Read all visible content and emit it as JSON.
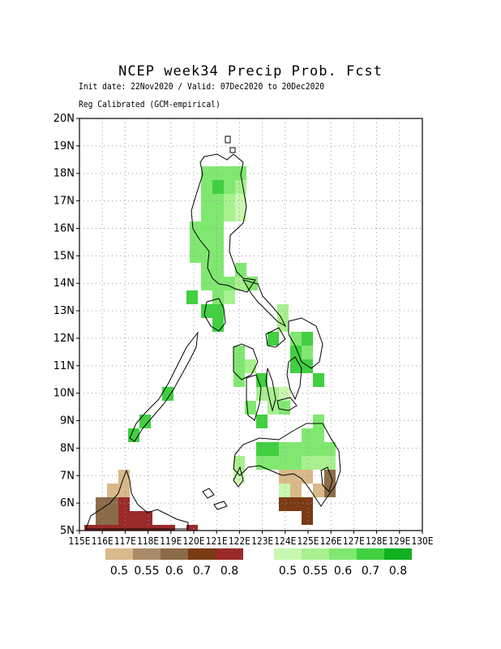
{
  "title": "NCEP week34 Precip Prob. Fcst",
  "subtitle_1": "Init date: 22Nov2020 / Valid: 07Dec2020 to 20Dec2020",
  "subtitle_2": "Reg Calibrated (GCM-empirical)",
  "map": {
    "lat_labels": [
      "5N",
      "6N",
      "7N",
      "8N",
      "9N",
      "10N",
      "11N",
      "12N",
      "13N",
      "14N",
      "15N",
      "16N",
      "17N",
      "18N",
      "19N",
      "20N"
    ],
    "lon_labels": [
      "115E",
      "116E",
      "117E",
      "118E",
      "119E",
      "120E",
      "121E",
      "122E",
      "123E",
      "124E",
      "125E",
      "126E",
      "127E",
      "128E",
      "129E",
      "130E"
    ],
    "lon_range": [
      115,
      130
    ],
    "lat_range": [
      5,
      20
    ],
    "grid": true
  },
  "legend_dry": {
    "colors": [
      "#d8b98a",
      "#a98b6a",
      "#8b6b48",
      "#7a3a14",
      "#9b2a2a"
    ],
    "labels": [
      "0.5",
      "0.55",
      "0.6",
      "0.7",
      "0.8"
    ]
  },
  "legend_wet": {
    "colors": [
      "#c8f8b0",
      "#a8f090",
      "#80e870",
      "#40d040",
      "#10b020"
    ],
    "labels": [
      "0.5",
      "0.55",
      "0.6",
      "0.7",
      "0.8"
    ]
  }
}
